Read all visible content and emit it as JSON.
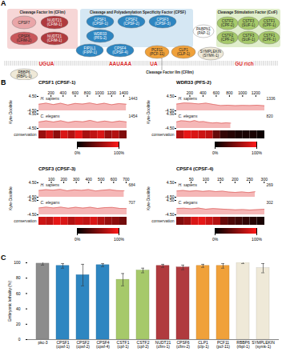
{
  "panel_labels": [
    "A",
    "B",
    "C"
  ],
  "diagram": {
    "groups": [
      {
        "title": "Cleavage Factor Im (CFIm)",
        "color": "#f6d6d6"
      },
      {
        "title": "Cleavage and Polyadenylation Specificity Factor (CPSF)",
        "color": "#d5e7f3"
      },
      {
        "title": "Cleavage Stimulation Factor (CstF)",
        "color": "#e0eecb"
      },
      {
        "title": "Cleavage Factor IIm (CFIIm)"
      }
    ],
    "nodes": [
      {
        "label": "CPSF7",
        "color": "#e9a5a8"
      },
      {
        "label": "NUDT21 (CFIM-1)",
        "color": "#b03a3e"
      },
      {
        "label": "CPSF6 (CFIM-2)",
        "color": "#c9575b"
      },
      {
        "label": "NUDT21 (CFIM-1)",
        "color": "#b03a3e"
      },
      {
        "label": "CPSF1 (CPSF-1)",
        "color": "#2e86c1"
      },
      {
        "label": "WDR33 (PFS-2)",
        "color": "#2e86c1"
      },
      {
        "label": "CPSF2 (CPSF-2)",
        "color": "#2e86c1"
      },
      {
        "label": "CPSF3 (CPSF-3)",
        "color": "#2e86c1"
      },
      {
        "label": "FIP1L1 (FIPP-1)",
        "color": "#2e86c1"
      },
      {
        "label": "CPSF4 (CPSF-4)",
        "color": "#2e86c1"
      },
      {
        "label": "PABPN1 (PAP-1)",
        "color": "#ffffff"
      },
      {
        "label": "PCF11 (PCF-11)",
        "color": "#f0a13a"
      },
      {
        "label": "CLP1 (CLP-1)",
        "color": "#f0a13a"
      },
      {
        "label": "SYMPLEKIN (SYMK-1)",
        "color": "#efe9d8"
      },
      {
        "label": "RBBP6 (RBPL-1)",
        "color": "#efe9d8"
      },
      {
        "label": "CSTF2 (CPF-2)",
        "color": "#a6c96a"
      },
      {
        "label": "CSTF3 (SUF-1)",
        "color": "#a6c96a"
      },
      {
        "label": "CSTF1 (CPF-1)",
        "color": "#a6c96a"
      },
      {
        "label": "CSTF2 (CPF-2)",
        "color": "#a6c96a"
      },
      {
        "label": "CSTF3 (SUF-1)",
        "color": "#a6c96a"
      },
      {
        "label": "CSTF1 (CPF-1)",
        "color": "#a6c96a"
      }
    ],
    "rna_motifs": [
      "UGUA",
      "AAUAAA",
      "UA",
      "GU rich"
    ],
    "motif_color": "#d62728"
  },
  "chart_data": [
    {
      "type": "area",
      "title": "CPSF1 (CPSF-1)",
      "ylabel": "Kyte-Doolittle",
      "xlim": [
        0,
        1454
      ],
      "xticks": [
        200,
        400,
        600,
        800,
        1000,
        1200,
        1400
      ],
      "ylim": [
        -4.5,
        4.5
      ],
      "yticks": [
        {
          "value": -4.5,
          "label": "-4.50"
        },
        {
          "value": 4.5,
          "label": "4.50"
        }
      ],
      "series": [
        {
          "name": "H. sapiens",
          "color": "#f5b7b7",
          "length": 1443,
          "x": [
            1,
            120,
            240,
            360,
            480,
            600,
            720,
            840,
            960,
            1080,
            1200,
            1320,
            1443
          ],
          "values": [
            -0.4,
            0.3,
            -0.6,
            0.2,
            -0.9,
            0.1,
            -0.3,
            0.4,
            -0.5,
            0.2,
            -0.7,
            0.0,
            -0.4
          ]
        },
        {
          "name": "C. elegans",
          "color": "#f5b7b7",
          "length": 1454,
          "x": [
            1,
            121,
            242,
            363,
            484,
            605,
            726,
            847,
            968,
            1089,
            1210,
            1331,
            1454
          ],
          "values": [
            -0.5,
            0.2,
            -0.5,
            0.3,
            -0.8,
            0.0,
            -0.4,
            0.5,
            -0.6,
            0.1,
            -0.6,
            0.1,
            -0.5
          ]
        }
      ],
      "conservation": {
        "label": "conservation",
        "x": [
          0,
          121,
          242,
          363,
          484,
          605,
          726,
          847,
          968,
          1089,
          1210,
          1331
        ],
        "values": [
          60,
          80,
          55,
          85,
          70,
          90,
          65,
          75,
          85,
          60,
          70,
          50
        ],
        "range": [
          0,
          100
        ],
        "ticks": [
          {
            "value": 0,
            "label": "0%"
          },
          {
            "value": 100,
            "label": "100%"
          }
        ]
      }
    },
    {
      "type": "area",
      "title": "WDR33 (PFS-2)",
      "ylabel": "Kyte-Doolittle",
      "xlim": [
        0,
        1336
      ],
      "xticks": [
        200,
        400,
        600,
        800,
        1000,
        1200
      ],
      "ylim": [
        -4.5,
        4.5
      ],
      "yticks": [
        {
          "value": -4.5,
          "label": "-4.50"
        },
        {
          "value": 4.5,
          "label": "4.50"
        }
      ],
      "series": [
        {
          "name": "H. sapiens",
          "color": "#f5b7b7",
          "length": 1336,
          "x": [
            1,
            111,
            222,
            333,
            444,
            555,
            666,
            777,
            888,
            999,
            1110,
            1221,
            1336
          ],
          "values": [
            -0.3,
            0.4,
            0.2,
            -0.2,
            0.3,
            -0.5,
            -1.2,
            -1.0,
            -1.3,
            -1.1,
            -1.2,
            -1.0,
            -1.4
          ]
        },
        {
          "name": "C. elegans",
          "color": "#f5b7b7",
          "length": 820,
          "x": [
            1,
            68,
            136,
            204,
            272,
            340,
            408,
            476,
            544,
            612,
            680,
            748,
            820
          ],
          "values": [
            -0.4,
            0.3,
            0.1,
            -0.3,
            0.4,
            -0.4,
            -0.2,
            -0.8,
            -1.1,
            -0.9,
            -1.3,
            -1.0,
            -1.2
          ]
        }
      ],
      "conservation": {
        "label": "conservation",
        "x": [
          0,
          111,
          222,
          333,
          444,
          555,
          666,
          777,
          888,
          999,
          1110,
          1221
        ],
        "values": [
          70,
          90,
          85,
          80,
          75,
          40,
          20,
          15,
          10,
          10,
          10,
          5
        ],
        "range": [
          0,
          100
        ],
        "ticks": [
          {
            "value": 0,
            "label": "0%"
          },
          {
            "value": 100,
            "label": "100%"
          }
        ]
      }
    },
    {
      "type": "area",
      "title": "CPSF3 (CPSF-3)",
      "ylabel": "Kyte-Doolittle",
      "xlim": [
        0,
        707
      ],
      "xticks": [
        100,
        200,
        300,
        400,
        500,
        600,
        700
      ],
      "ylim": [
        -4.5,
        4.5
      ],
      "yticks": [
        {
          "value": -4.5,
          "label": "-4.50"
        },
        {
          "value": 4.5,
          "label": "4.50"
        }
      ],
      "series": [
        {
          "name": "H. sapiens",
          "color": "#f5b7b7",
          "length": 684,
          "x": [
            1,
            57,
            114,
            171,
            228,
            285,
            342,
            399,
            456,
            513,
            570,
            627,
            684
          ],
          "values": [
            -0.3,
            0.2,
            -0.1,
            0.4,
            -0.5,
            0.1,
            -0.2,
            0.3,
            -0.6,
            -0.1,
            0.2,
            -0.4,
            -0.5
          ]
        },
        {
          "name": "C. elegans",
          "color": "#f5b7b7",
          "length": 707,
          "x": [
            1,
            59,
            118,
            177,
            236,
            295,
            354,
            413,
            472,
            531,
            590,
            649,
            707
          ],
          "values": [
            -0.2,
            0.3,
            -0.2,
            0.3,
            -0.4,
            0.2,
            -0.3,
            0.2,
            -0.5,
            0.0,
            0.1,
            -0.5,
            -0.6
          ]
        }
      ],
      "conservation": {
        "label": "conservation",
        "x": [
          0,
          59,
          118,
          177,
          236,
          295,
          354,
          413,
          472,
          531,
          590,
          649
        ],
        "values": [
          80,
          75,
          90,
          85,
          70,
          80,
          75,
          85,
          70,
          60,
          55,
          45
        ],
        "range": [
          0,
          100
        ],
        "ticks": [
          {
            "value": 0,
            "label": "0%"
          },
          {
            "value": 100,
            "label": "100%"
          }
        ]
      }
    },
    {
      "type": "area",
      "title": "CPSF4 (CPSF-4)",
      "ylabel": "Kyte-Doolittle",
      "xlim": [
        0,
        302
      ],
      "xticks": [
        50,
        100,
        150,
        200,
        250,
        300
      ],
      "ylim": [
        -4.5,
        4.5
      ],
      "yticks": [
        {
          "value": -4.5,
          "label": "-4.50"
        },
        {
          "value": 4.5,
          "label": "4.50"
        }
      ],
      "series": [
        {
          "name": "H. sapiens",
          "color": "#f5b7b7",
          "length": 269,
          "x": [
            1,
            22,
            45,
            67,
            90,
            112,
            134,
            157,
            179,
            201,
            224,
            246,
            269
          ],
          "values": [
            -0.6,
            -0.3,
            -0.8,
            -0.4,
            -0.9,
            -0.5,
            -1.0,
            -0.7,
            -1.3,
            -1.5,
            -1.2,
            -1.6,
            -1.1
          ]
        },
        {
          "name": "C. elegans",
          "color": "#f5b7b7",
          "length": 302,
          "x": [
            1,
            25,
            50,
            75,
            100,
            125,
            151,
            176,
            201,
            226,
            251,
            276,
            302
          ],
          "values": [
            -0.5,
            -0.4,
            -0.7,
            -0.3,
            -1.0,
            -0.6,
            -0.9,
            -1.1,
            -1.4,
            -1.2,
            -1.5,
            -1.3,
            -1.0
          ]
        }
      ],
      "conservation": {
        "label": "conservation",
        "x": [
          0,
          25,
          50,
          75,
          100,
          125,
          151,
          176,
          201,
          226,
          251,
          276
        ],
        "values": [
          50,
          60,
          85,
          90,
          80,
          70,
          40,
          30,
          25,
          20,
          15,
          10
        ],
        "range": [
          0,
          100
        ],
        "ticks": [
          {
            "value": 0,
            "label": "0%"
          },
          {
            "value": 100,
            "label": "100%"
          }
        ]
      }
    },
    {
      "type": "bar",
      "ylabel": "Embryonic lethality (%)",
      "categories": [
        "pkc-3",
        "CPSF1 (cpsf-1)",
        "CPSF2 (cpsf-2)",
        "CPSF4 (cpsf-4)",
        "CSTF1 (cpf-1)",
        "CSTF2 (cpf-2)",
        "NUDT21 (cfim-1)",
        "CPSF6 (cfim-2)",
        "CLP1 (clp-1)",
        "PCF11 (pcf-11)",
        "RBBP6 (rbpl-1)",
        "SYMPLEKIN (symk-1)"
      ],
      "values": [
        99,
        96,
        84,
        97,
        78,
        90,
        96,
        94,
        96,
        96,
        100,
        93
      ],
      "errors": [
        2,
        3,
        14,
        2,
        8,
        3,
        2,
        3,
        2,
        3,
        1,
        6
      ],
      "colors": [
        "#8c8c8c",
        "#2e86c1",
        "#2e86c1",
        "#2e86c1",
        "#a6c96a",
        "#a6c96a",
        "#b03a3e",
        "#b03a3e",
        "#f0a13a",
        "#f0a13a",
        "#efe9d8",
        "#efe9d8"
      ],
      "ylim": [
        0,
        100
      ],
      "yticks": [
        0,
        20,
        40,
        60,
        80,
        100
      ]
    }
  ]
}
